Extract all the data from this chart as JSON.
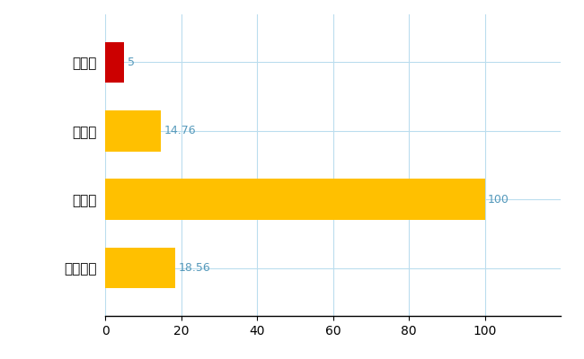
{
  "categories": [
    "羽後町",
    "県平均",
    "県最大",
    "全国平均"
  ],
  "values": [
    5,
    14.76,
    100,
    18.56
  ],
  "bar_colors": [
    "#CC0000",
    "#FFC000",
    "#FFC000",
    "#FFC000"
  ],
  "value_labels": [
    "5",
    "14.76",
    "100",
    "18.56"
  ],
  "xlim": [
    0,
    120
  ],
  "xticks": [
    0,
    20,
    40,
    60,
    80,
    100
  ],
  "grid_color": "#BBDDEE",
  "background_color": "#FFFFFF",
  "label_color": "#5599BB",
  "bar_height": 0.6,
  "figsize": [
    6.5,
    4.0
  ],
  "dpi": 100
}
